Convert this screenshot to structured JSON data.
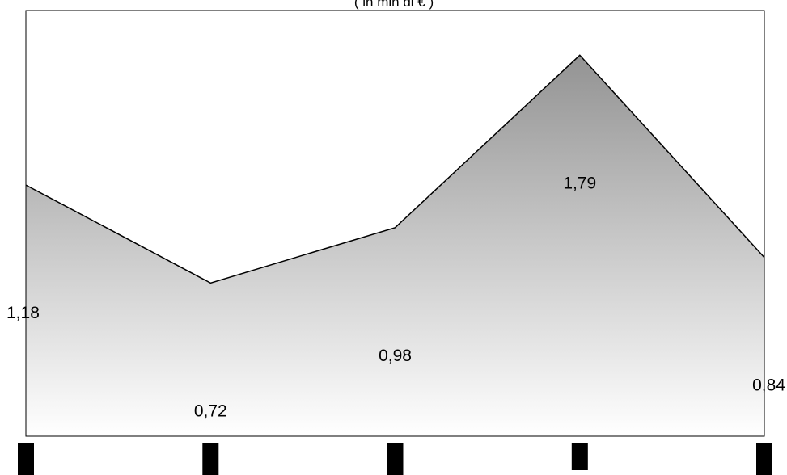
{
  "chart_data": {
    "type": "area",
    "subtitle": "( in mln di € )",
    "categories": [
      "",
      "",
      "",
      "",
      ""
    ],
    "values": [
      1.18,
      0.72,
      0.98,
      1.79,
      0.84
    ],
    "labels": [
      "1,18",
      "0,72",
      "0,98",
      "1,79",
      "0,84"
    ],
    "ylim": [
      0,
      2.0
    ],
    "grid": false,
    "legend": "none",
    "colors": {
      "fill_top": "#939393",
      "fill_bottom": "#ffffff",
      "line": "#000000",
      "plot_border": "#000000",
      "axis_markers": "#000000"
    }
  }
}
